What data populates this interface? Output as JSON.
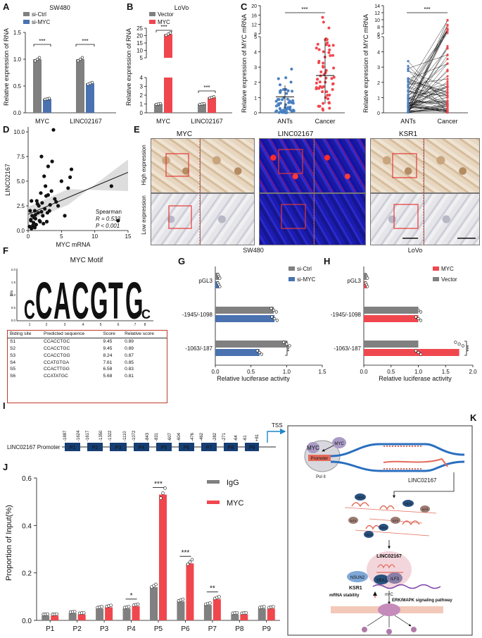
{
  "panels": {
    "A": {
      "letter": "A",
      "title": "SW480",
      "ylabel": "Relative expression of RNA",
      "legend": [
        "si-Ctrl",
        "si-MYC"
      ],
      "categories": [
        "MYC",
        "LINC02167"
      ],
      "ticks": [
        "0.0",
        "0.5",
        "1.0",
        "1.5"
      ],
      "sig": [
        "***",
        "***"
      ]
    },
    "B": {
      "letter": "B",
      "title": "LoVo",
      "ylabel": "Relative expression of RNA",
      "legend": [
        "Vector",
        "MYC"
      ],
      "categories": [
        "MYC",
        "LINC02167"
      ],
      "ticks_low": [
        "0",
        "1",
        "2",
        "3",
        "4"
      ],
      "ticks_high": [
        "5",
        "10",
        "15",
        "20",
        "25"
      ],
      "sig": [
        "***",
        "***"
      ]
    },
    "C": {
      "letter": "C",
      "ylabel": "Relative expression of MYC mRNA",
      "categories": [
        "ANTs",
        "Cancer"
      ],
      "sig": "***",
      "ticks_low": [
        "0",
        "1",
        "2",
        "3",
        "4",
        "5"
      ],
      "ticks_high": [
        "8",
        "12",
        "16",
        "20"
      ],
      "paired_ylabel": "Relative expression of MYC mRNA",
      "paired_sig": "***",
      "paired_ticks_low": [
        "0",
        "1",
        "2",
        "3",
        "4",
        "5"
      ],
      "paired_ticks_high": [
        "6",
        "8",
        "10",
        "12",
        "14"
      ]
    },
    "D": {
      "letter": "D",
      "xlabel": "MYC mRNA",
      "ylabel": "LINC02167",
      "xticks": [
        "0",
        "5",
        "10",
        "15"
      ],
      "yticks": [
        "0.0",
        "2.5",
        "5.0",
        "7.5",
        "10.0"
      ],
      "stats": [
        "Spearman",
        "R = 0.533",
        "P < 0.001"
      ]
    },
    "E": {
      "letter": "E",
      "columns": [
        "MYC",
        "LINC02167",
        "KSR1"
      ],
      "rows": [
        "High expression",
        "Low expression"
      ]
    },
    "F": {
      "letter": "F",
      "title": "MYC Motif",
      "bits_label": "Bits",
      "yticks": [
        "0.0",
        "0.5",
        "1.0",
        "1.5",
        "2.0"
      ],
      "letters": [
        "C",
        "C",
        "A",
        "C",
        "G",
        "T",
        "G",
        "C"
      ],
      "positions": [
        "1",
        "2",
        "3",
        "4",
        "5",
        "6",
        "7",
        "8"
      ],
      "table": {
        "headers": [
          "Biding site",
          "Predicted sequence",
          "Score",
          "Relative score"
        ],
        "rows": [
          [
            "S1",
            "CCACCTGC",
            "9.45",
            "0.89"
          ],
          [
            "S2",
            "CCACCTGC",
            "9.45",
            "0.89"
          ],
          [
            "S3",
            "CCACCTGG",
            "8.24",
            "0.87"
          ],
          [
            "S4",
            "CCATGTGA",
            "7.61",
            "0.85"
          ],
          [
            "S5",
            "CCACTTGG",
            "6.58",
            "0.83"
          ],
          [
            "S6",
            "CCATATGC",
            "5.68",
            "0.81"
          ]
        ]
      }
    },
    "G": {
      "letter": "G",
      "title": "SW480",
      "xlabel": "Relative luciferase activity",
      "legend": [
        "si-Ctrl",
        "si-MYC"
      ],
      "categories": [
        "pGL3",
        "-1945/-1098",
        "-1063/-187"
      ],
      "ticks": [
        "0.0",
        "0.5",
        "1.0",
        "1.5"
      ],
      "sig": "***"
    },
    "H": {
      "letter": "H",
      "title": "LoVo",
      "xlabel": "Relative luciferase activity",
      "legend": [
        "MYC",
        "Vector"
      ],
      "categories": [
        "pGL3",
        "-1945/-1098",
        "-1063/-187"
      ],
      "ticks": [
        "0.0",
        "0.5",
        "1.0",
        "1.5",
        "2.0"
      ],
      "sig": "***"
    },
    "I": {
      "letter": "I",
      "label": "LINC02167 Promoter",
      "tss": "TSS",
      "positions": [
        "-1887",
        "-1624",
        "-1617",
        "-1350",
        "-1322",
        "-1110",
        "-1072",
        "-843",
        "-831",
        "-607",
        "-604",
        "-476",
        "-462",
        "-282",
        "-271",
        "-64",
        "-61",
        "+81"
      ],
      "segments": [
        "P1",
        "P2",
        "P3",
        "P4",
        "P5",
        "P6",
        "P7",
        "P8",
        "P9"
      ]
    },
    "J": {
      "letter": "J",
      "ylabel": "Proportion of Input(%)",
      "legend": [
        "IgG",
        "MYC"
      ],
      "yticks": [
        "0.0",
        "0.2",
        "0.4",
        "0.6"
      ],
      "sig": [
        {
          "cat": "P4",
          "mark": "*"
        },
        {
          "cat": "P5",
          "mark": "***"
        },
        {
          "cat": "P6",
          "mark": "***"
        },
        {
          "cat": "P7",
          "mark": "**"
        }
      ]
    },
    "K": {
      "letter": "K",
      "labels": {
        "myc1": "MYC",
        "myc2": "MYC",
        "promoter": "Promoter",
        "pol": "Pol II",
        "linc": "LINC02167",
        "linc2": "LINC02167",
        "ybx1": "YBX1",
        "ilf3": "ILF3",
        "nsun2": "NSUN2",
        "ksr1": "KSR1",
        "stability": "mRNA stability",
        "m5c": "m⁵C",
        "erk": "ERK/MAPK signaling pathway"
      },
      "cloud_proteins": [
        "YBX1",
        "YBX1",
        "ILF3",
        "ILF3",
        "YBX1",
        "ILF3",
        "YBX1"
      ]
    }
  },
  "colors": {
    "gray": "#808080",
    "blue": "#4a72b0",
    "red": "#f0474e",
    "dark": "#111111"
  },
  "chart_data": [
    {
      "id": "A",
      "type": "bar",
      "categories": [
        "MYC",
        "LINC02167"
      ],
      "series": [
        {
          "name": "si-Ctrl",
          "values": [
            1.0,
            1.0
          ]
        },
        {
          "name": "si-MYC",
          "values": [
            0.26,
            0.55
          ]
        }
      ],
      "ylim": [
        0,
        1.5
      ]
    },
    {
      "id": "B",
      "type": "bar",
      "categories": [
        "MYC",
        "LINC02167"
      ],
      "series": [
        {
          "name": "Vector",
          "values": [
            1.0,
            1.0
          ]
        },
        {
          "name": "MYC",
          "values": [
            21,
            1.75
          ]
        }
      ],
      "ylim": [
        0,
        25
      ]
    },
    {
      "id": "D",
      "type": "scatter",
      "x": [
        0.2,
        0.4,
        0.5,
        0.6,
        0.8,
        1.0,
        1.1,
        1.2,
        1.3,
        1.5,
        1.6,
        1.8,
        2.0,
        2.1,
        2.2,
        2.4,
        2.5,
        2.7,
        3.0,
        3.2,
        3.5,
        3.8,
        4.0,
        4.5,
        5.0,
        5.5,
        6.0,
        6.5,
        0.3,
        0.7,
        0.9,
        1.4,
        1.7,
        1.9,
        2.3,
        2.6,
        2.9,
        3.3,
        0.5,
        1.1,
        4.2,
        2.8,
        3.6,
        12.5,
        13.5,
        0.4,
        1.0,
        2.0,
        3.0,
        6.3
      ],
      "y": [
        0.4,
        1.0,
        0.2,
        1.5,
        0.8,
        2.0,
        1.2,
        0.6,
        3.0,
        1.8,
        2.5,
        0.9,
        7.5,
        2.8,
        1.5,
        5.5,
        2.2,
        3.5,
        6.5,
        2.0,
        4.0,
        10.2,
        3.2,
        2.5,
        5.0,
        1.5,
        4.3,
        6.2,
        2.0,
        0.5,
        1.3,
        2.7,
        1.0,
        3.8,
        0.7,
        4.5,
        1.8,
        2.6,
        3.0,
        1.6,
        2.9,
        0.9,
        7.0,
        4.5,
        1.0,
        1.1,
        0.3,
        1.9,
        3.6,
        5.4
      ],
      "xlim": [
        0,
        15
      ],
      "ylim": [
        0,
        10.5
      ]
    },
    {
      "id": "G",
      "type": "bar",
      "orientation": "horizontal",
      "categories": [
        "pGL3",
        "-1945/-1098",
        "-1063/-187"
      ],
      "series": [
        {
          "name": "si-Ctrl",
          "values": [
            0.05,
            0.82,
            1.0
          ]
        },
        {
          "name": "si-MYC",
          "values": [
            0.05,
            0.83,
            0.62
          ]
        }
      ],
      "xlim": [
        0,
        1.5
      ]
    },
    {
      "id": "H",
      "type": "bar",
      "orientation": "horizontal",
      "categories": [
        "pGL3",
        "-1945/-1098",
        "-1063/-187"
      ],
      "series": [
        {
          "name": "MYC",
          "values": [
            0.05,
            1.0,
            1.75
          ]
        },
        {
          "name": "Vector",
          "values": [
            0.05,
            1.0,
            1.0
          ]
        }
      ],
      "xlim": [
        0,
        2.0
      ]
    },
    {
      "id": "J",
      "type": "bar",
      "categories": [
        "P1",
        "P2",
        "P3",
        "P4",
        "P5",
        "P6",
        "P7",
        "P8",
        "P9"
      ],
      "series": [
        {
          "name": "IgG",
          "values": [
            0.02,
            0.03,
            0.05,
            0.05,
            0.14,
            0.08,
            0.065,
            0.025,
            0.05
          ]
        },
        {
          "name": "MYC",
          "values": [
            0.02,
            0.025,
            0.055,
            0.06,
            0.53,
            0.24,
            0.09,
            0.025,
            0.05
          ]
        }
      ],
      "ylim": [
        0,
        0.6
      ]
    }
  ]
}
